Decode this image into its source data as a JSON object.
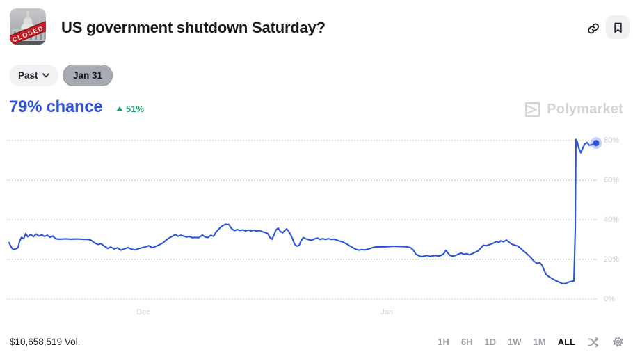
{
  "header": {
    "title": "US government shutdown Saturday?",
    "thumbnail_label": "CLOSED"
  },
  "filters": {
    "past_label": "Past",
    "date_label": "Jan 31"
  },
  "price": {
    "chance_label": "79% chance",
    "delta_label": "51%"
  },
  "watermark": {
    "label": "Polymarket"
  },
  "footer": {
    "volume_label": "$10,658,519 Vol.",
    "ranges": [
      "1H",
      "6H",
      "1D",
      "1W",
      "1M",
      "ALL"
    ],
    "active_range": "ALL"
  },
  "chart_data": {
    "type": "line",
    "title": "US government shutdown Saturday? — probability over time",
    "ylabel": "chance",
    "ylim": [
      0,
      80
    ],
    "yticks": [
      "0%",
      "20%",
      "40%",
      "60%",
      "80%"
    ],
    "xticks": [
      {
        "label": "Dec",
        "x": 206
      },
      {
        "label": "Jan",
        "x": 556
      }
    ],
    "grid": "dotted-horizontal",
    "legend": "none",
    "line_color": "#2b55d9",
    "dot_color": "#2b55d9",
    "halo_color": "rgba(78,116,231,0.30)",
    "current_value_pct": 79,
    "change_pct": 51,
    "points": [
      [
        13,
        28.5
      ],
      [
        16,
        26.3
      ],
      [
        19,
        25.0
      ],
      [
        23,
        25.4
      ],
      [
        26,
        26.0
      ],
      [
        28,
        29.0
      ],
      [
        31,
        31.2
      ],
      [
        34,
        30.4
      ],
      [
        37,
        33.0
      ],
      [
        40,
        31.4
      ],
      [
        44,
        32.6
      ],
      [
        48,
        31.5
      ],
      [
        52,
        32.8
      ],
      [
        56,
        31.8
      ],
      [
        60,
        32.4
      ],
      [
        64,
        31.6
      ],
      [
        68,
        32.2
      ],
      [
        72,
        31.2
      ],
      [
        76,
        31.8
      ],
      [
        80,
        30.4
      ],
      [
        86,
        30.2
      ],
      [
        94,
        30.4
      ],
      [
        102,
        30.2
      ],
      [
        110,
        30.3
      ],
      [
        118,
        30.2
      ],
      [
        126,
        30.1
      ],
      [
        131,
        29.7
      ],
      [
        136,
        28.3
      ],
      [
        141,
        27.5
      ],
      [
        145,
        28.0
      ],
      [
        150,
        26.7
      ],
      [
        155,
        25.5
      ],
      [
        159,
        26.3
      ],
      [
        164,
        25.3
      ],
      [
        169,
        25.9
      ],
      [
        174,
        24.7
      ],
      [
        179,
        25.4
      ],
      [
        184,
        26.0
      ],
      [
        189,
        25.2
      ],
      [
        194,
        24.8
      ],
      [
        199,
        25.4
      ],
      [
        204,
        25.9
      ],
      [
        209,
        26.3
      ],
      [
        214,
        26.9
      ],
      [
        219,
        25.9
      ],
      [
        224,
        26.6
      ],
      [
        229,
        27.4
      ],
      [
        234,
        28.3
      ],
      [
        239,
        29.8
      ],
      [
        244,
        31.0
      ],
      [
        248,
        31.7
      ],
      [
        252,
        32.6
      ],
      [
        256,
        31.7
      ],
      [
        260,
        32.2
      ],
      [
        264,
        31.8
      ],
      [
        268,
        31.3
      ],
      [
        272,
        31.6
      ],
      [
        276,
        31.0
      ],
      [
        281,
        31.1
      ],
      [
        286,
        31.0
      ],
      [
        291,
        32.3
      ],
      [
        295,
        31.3
      ],
      [
        299,
        31.0
      ],
      [
        303,
        32.2
      ],
      [
        307,
        31.7
      ],
      [
        311,
        34.0
      ],
      [
        315,
        35.5
      ],
      [
        319,
        36.8
      ],
      [
        324,
        37.7
      ],
      [
        329,
        37.6
      ],
      [
        333,
        35.5
      ],
      [
        337,
        34.5
      ],
      [
        341,
        35.1
      ],
      [
        345,
        34.6
      ],
      [
        349,
        34.9
      ],
      [
        353,
        34.4
      ],
      [
        357,
        34.8
      ],
      [
        361,
        34.4
      ],
      [
        365,
        34.7
      ],
      [
        369,
        34.3
      ],
      [
        373,
        34.6
      ],
      [
        377,
        34.0
      ],
      [
        381,
        33.6
      ],
      [
        385,
        33.0
      ],
      [
        388,
        31.0
      ],
      [
        391,
        30.2
      ],
      [
        394,
        32.5
      ],
      [
        397,
        35.0
      ],
      [
        400,
        35.8
      ],
      [
        403,
        34.1
      ],
      [
        406,
        33.4
      ],
      [
        409,
        34.4
      ],
      [
        412,
        35.4
      ],
      [
        415,
        34.2
      ],
      [
        418,
        32.4
      ],
      [
        421,
        29.9
      ],
      [
        424,
        27.4
      ],
      [
        427,
        26.7
      ],
      [
        430,
        27.1
      ],
      [
        433,
        29.5
      ],
      [
        436,
        31.0
      ],
      [
        440,
        30.4
      ],
      [
        444,
        29.9
      ],
      [
        448,
        29.7
      ],
      [
        452,
        30.3
      ],
      [
        456,
        30.8
      ],
      [
        460,
        30.1
      ],
      [
        464,
        30.5
      ],
      [
        468,
        30.1
      ],
      [
        472,
        30.5
      ],
      [
        476,
        30.1
      ],
      [
        480,
        30.2
      ],
      [
        484,
        29.8
      ],
      [
        488,
        29.3
      ],
      [
        492,
        28.9
      ],
      [
        496,
        28.2
      ],
      [
        500,
        27.5
      ],
      [
        504,
        26.6
      ],
      [
        508,
        25.8
      ],
      [
        512,
        25.1
      ],
      [
        516,
        24.7
      ],
      [
        520,
        25.0
      ],
      [
        524,
        24.8
      ],
      [
        528,
        25.1
      ],
      [
        532,
        25.5
      ],
      [
        536,
        26.0
      ],
      [
        540,
        26.3
      ],
      [
        545,
        26.3
      ],
      [
        550,
        26.4
      ],
      [
        555,
        26.4
      ],
      [
        560,
        26.5
      ],
      [
        565,
        26.7
      ],
      [
        570,
        26.6
      ],
      [
        575,
        26.5
      ],
      [
        580,
        26.5
      ],
      [
        585,
        26.3
      ],
      [
        590,
        26.0
      ],
      [
        594,
        24.8
      ],
      [
        598,
        22.6
      ],
      [
        602,
        21.9
      ],
      [
        606,
        21.4
      ],
      [
        610,
        21.7
      ],
      [
        614,
        22.0
      ],
      [
        618,
        21.5
      ],
      [
        622,
        21.8
      ],
      [
        626,
        22.0
      ],
      [
        630,
        21.7
      ],
      [
        634,
        22.0
      ],
      [
        638,
        22.9
      ],
      [
        641,
        24.6
      ],
      [
        644,
        23.2
      ],
      [
        647,
        22.0
      ],
      [
        651,
        21.6
      ],
      [
        655,
        22.0
      ],
      [
        659,
        22.7
      ],
      [
        663,
        23.2
      ],
      [
        667,
        22.6
      ],
      [
        671,
        22.9
      ],
      [
        675,
        22.3
      ],
      [
        679,
        22.9
      ],
      [
        683,
        23.6
      ],
      [
        687,
        24.2
      ],
      [
        691,
        25.7
      ],
      [
        695,
        27.2
      ],
      [
        699,
        26.9
      ],
      [
        703,
        27.4
      ],
      [
        707,
        27.9
      ],
      [
        711,
        28.5
      ],
      [
        714,
        29.1
      ],
      [
        717,
        28.5
      ],
      [
        720,
        29.4
      ],
      [
        724,
        28.9
      ],
      [
        728,
        29.8
      ],
      [
        732,
        28.7
      ],
      [
        736,
        27.7
      ],
      [
        740,
        27.2
      ],
      [
        744,
        26.8
      ],
      [
        748,
        25.8
      ],
      [
        752,
        24.4
      ],
      [
        756,
        23.3
      ],
      [
        760,
        22.0
      ],
      [
        764,
        20.6
      ],
      [
        768,
        19.0
      ],
      [
        772,
        18.0
      ],
      [
        776,
        18.3
      ],
      [
        779,
        17.2
      ],
      [
        782,
        14.8
      ],
      [
        785,
        12.5
      ],
      [
        789,
        11.3
      ],
      [
        793,
        10.5
      ],
      [
        797,
        9.7
      ],
      [
        801,
        9.0
      ],
      [
        805,
        8.4
      ],
      [
        809,
        7.8
      ],
      [
        813,
        7.9
      ],
      [
        817,
        8.5
      ],
      [
        821,
        8.9
      ],
      [
        825,
        9.1
      ],
      [
        827,
        35.0
      ],
      [
        828,
        80.6
      ],
      [
        830,
        79.2
      ],
      [
        832,
        76.2
      ],
      [
        835,
        73.8
      ],
      [
        838,
        76.4
      ],
      [
        841,
        78.4
      ],
      [
        844,
        79.0
      ],
      [
        847,
        77.6
      ],
      [
        850,
        77.8
      ],
      [
        853,
        78.2
      ],
      [
        857,
        78.7
      ]
    ]
  }
}
